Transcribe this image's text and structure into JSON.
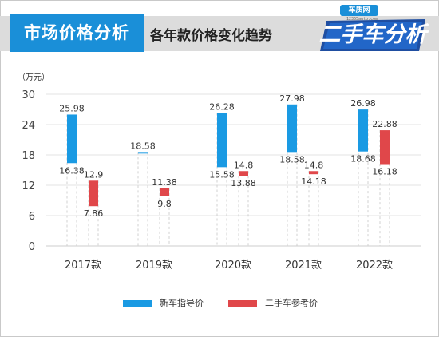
{
  "header": {
    "title": "市场价格分析",
    "subtitle": "各年款价格变化趋势",
    "logo_tag": "车质网",
    "logo_sub": "12365auto.com",
    "logo_main": "二手车分析"
  },
  "colors": {
    "new_car": "#1a9ae3",
    "used_car": "#e0474a",
    "title_bg": "#1a8fd8",
    "band": "#dcdcdc"
  },
  "chart_data": {
    "type": "bar",
    "ylabel": "（万元）",
    "ylim": [
      0,
      30
    ],
    "yticks": [
      0,
      6,
      12,
      18,
      24,
      30
    ],
    "categories": [
      "2017款",
      "2019款",
      "2020款",
      "2021款",
      "2022款"
    ],
    "grid": true,
    "legend_position": "bottom",
    "series": [
      {
        "name": "新车指导价",
        "ranges": [
          [
            16.38,
            25.98
          ],
          [
            18.58,
            18.58
          ],
          [
            15.58,
            26.28
          ],
          [
            18.58,
            27.98
          ],
          [
            18.68,
            26.98
          ]
        ],
        "high_labels": [
          "25.98",
          "18.58",
          "26.28",
          "27.98",
          "26.98"
        ],
        "low_labels": [
          "16.38",
          "",
          "15.58",
          "18.58",
          "18.68"
        ]
      },
      {
        "name": "二手车参考价",
        "ranges": [
          [
            7.86,
            12.9
          ],
          [
            9.8,
            11.38
          ],
          [
            13.88,
            14.8
          ],
          [
            14.18,
            14.8
          ],
          [
            16.18,
            22.88
          ]
        ],
        "high_labels": [
          "12.9",
          "11.38",
          "14.8",
          "14.8",
          "22.88"
        ],
        "low_labels": [
          "7.86",
          "9.8",
          "13.88",
          "14.18",
          "16.18"
        ]
      }
    ]
  }
}
